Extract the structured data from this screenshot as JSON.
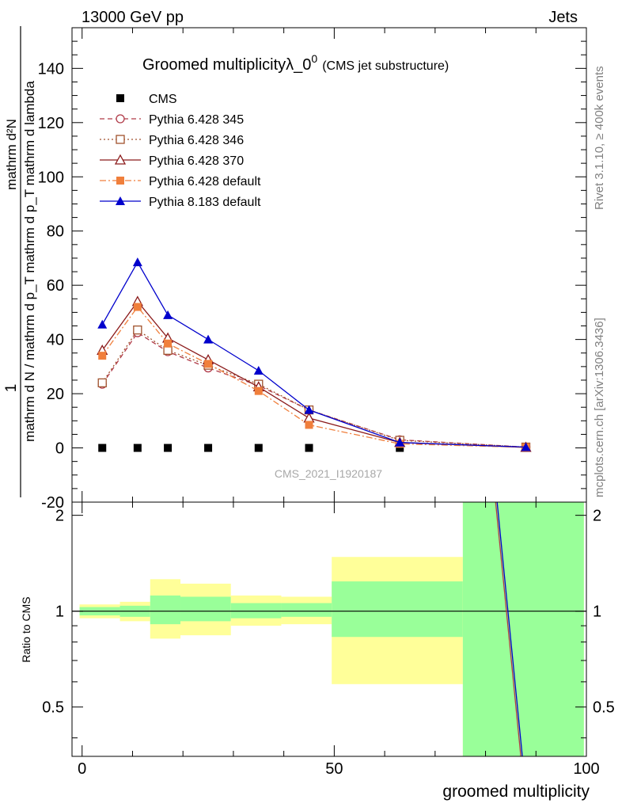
{
  "header": {
    "left_label": "13000 GeV pp",
    "right_label": "Jets",
    "side_label_top": "Rivet 3.1.10, ≥ 400k events",
    "side_label_bottom": "mcplots.cern.ch [arXiv:1306.3436]",
    "watermark": "CMS_2021_I1920187"
  },
  "chart_data": [
    {
      "type": "line",
      "title": "Groomed multiplicityλ_0",
      "title_superscript": "0",
      "subtitle": "(CMS jet substructure)",
      "ylabel_numerator": "mathrm d²N",
      "ylabel_one": "1",
      "ylabel_denominator": "mathrm d N / mathrm d p_T mathrm d p_T mathrm d lambda",
      "xlim": [
        -2,
        100
      ],
      "ylim": [
        -20,
        155
      ],
      "yticks": [
        -20,
        0,
        20,
        40,
        60,
        80,
        100,
        120,
        140
      ],
      "grid": false,
      "legend_position": "top-left",
      "series": [
        {
          "name": "CMS",
          "color": "#000000",
          "marker": "square-filled",
          "line": "none",
          "x": [
            4,
            11,
            17,
            25,
            35,
            45,
            63,
            88
          ],
          "y": [
            0,
            0,
            0,
            0,
            0,
            0,
            0,
            0
          ]
        },
        {
          "name": "Pythia 6.428 345",
          "color": "#b03a48",
          "marker": "circle-open",
          "line": "dashed",
          "x": [
            4,
            11,
            17,
            25,
            35,
            45,
            63,
            88
          ],
          "y": [
            23.5,
            42.5,
            35.5,
            29.5,
            23,
            14,
            3,
            0.3
          ]
        },
        {
          "name": "Pythia 6.428 346",
          "color": "#a0522d",
          "marker": "square-open",
          "line": "dotted",
          "x": [
            4,
            11,
            17,
            25,
            35,
            45,
            63,
            88
          ],
          "y": [
            24,
            43.5,
            36,
            30.5,
            23.5,
            14,
            2.8,
            0.3
          ]
        },
        {
          "name": "Pythia 6.428 370",
          "color": "#8b1a1a",
          "marker": "triangle-open",
          "line": "solid",
          "x": [
            4,
            11,
            17,
            25,
            35,
            45,
            63,
            88
          ],
          "y": [
            36,
            54,
            40.5,
            32.5,
            22.5,
            11,
            2,
            0.2
          ]
        },
        {
          "name": "Pythia 6.428 default",
          "color": "#f07f3c",
          "marker": "square-filled",
          "line": "dashdot",
          "x": [
            4,
            11,
            17,
            25,
            35,
            45,
            63,
            88
          ],
          "y": [
            34,
            52,
            38.5,
            31,
            21,
            8.5,
            1.5,
            0.2
          ]
        },
        {
          "name": "Pythia 8.183 default",
          "color": "#0000cc",
          "marker": "triangle-filled",
          "line": "solid",
          "x": [
            4,
            11,
            17,
            25,
            35,
            45,
            63,
            88
          ],
          "y": [
            45.5,
            68.5,
            49,
            40,
            28.5,
            14,
            2,
            0.3
          ]
        }
      ]
    },
    {
      "type": "area",
      "ylabel": "Ratio to CMS",
      "xlabel": "groomed multiplicity",
      "xlim": [
        -2,
        100
      ],
      "ylim": [
        0.35,
        2.2
      ],
      "yticks": [
        0.5,
        1,
        2
      ],
      "xticks": [
        0,
        50,
        100
      ],
      "grid": false,
      "bands": [
        {
          "x0": -0.5,
          "x1": 7.5,
          "yellow": [
            0.95,
            1.05
          ],
          "green": [
            0.97,
            1.03
          ]
        },
        {
          "x0": 7.5,
          "x1": 13.5,
          "yellow": [
            0.93,
            1.07
          ],
          "green": [
            0.96,
            1.04
          ]
        },
        {
          "x0": 13.5,
          "x1": 19.5,
          "yellow": [
            0.82,
            1.26
          ],
          "green": [
            0.91,
            1.12
          ]
        },
        {
          "x0": 19.5,
          "x1": 29.5,
          "yellow": [
            0.84,
            1.22
          ],
          "green": [
            0.93,
            1.11
          ]
        },
        {
          "x0": 29.5,
          "x1": 39.5,
          "yellow": [
            0.9,
            1.12
          ],
          "green": [
            0.95,
            1.06
          ]
        },
        {
          "x0": 39.5,
          "x1": 49.5,
          "yellow": [
            0.91,
            1.11
          ],
          "green": [
            0.96,
            1.06
          ]
        },
        {
          "x0": 49.5,
          "x1": 75.5,
          "yellow": [
            0.59,
            1.48
          ],
          "green": [
            0.83,
            1.24
          ]
        },
        {
          "x0": 75.5,
          "x1": 99.5,
          "yellow": [
            0.35,
            2.2
          ],
          "green": [
            0.35,
            2.2
          ]
        }
      ],
      "ratio_lines": [
        {
          "color": "#b03a48",
          "points": [
            [
              82,
              2.2
            ],
            [
              87,
              0.35
            ]
          ]
        },
        {
          "color": "#0000cc",
          "points": [
            [
              82.3,
              2.2
            ],
            [
              87.3,
              0.35
            ]
          ]
        }
      ]
    }
  ]
}
